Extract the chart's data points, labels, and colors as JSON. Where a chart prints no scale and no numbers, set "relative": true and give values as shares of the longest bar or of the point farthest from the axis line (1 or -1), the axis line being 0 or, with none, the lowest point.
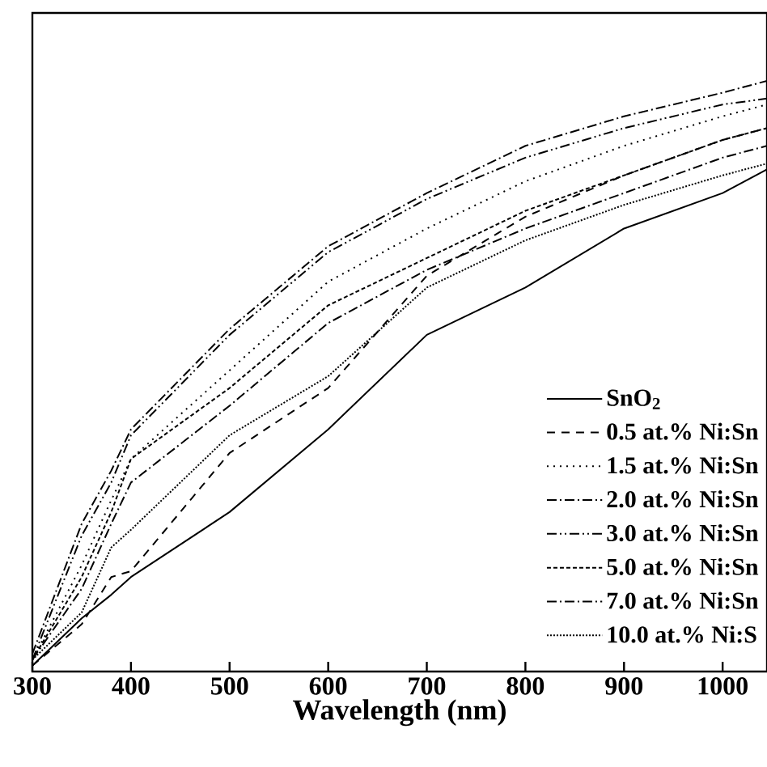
{
  "chart_data": {
    "type": "line",
    "xlabel": "Wavelength (nm)",
    "relative": true,
    "x": [
      300,
      350,
      380,
      400,
      500,
      600,
      700,
      800,
      900,
      1000,
      1045
    ],
    "xlim": [
      300,
      1045
    ],
    "xticks": [
      300,
      400,
      500,
      600,
      700,
      800,
      900,
      1000
    ],
    "legend": "bottom right",
    "grid": false,
    "marker": "none",
    "series": [
      {
        "name": "SnO$_{2}$",
        "color": "#000000",
        "line_style": "solid",
        "values": [
          0.01,
          0.09,
          0.13,
          0.16,
          0.27,
          0.41,
          0.57,
          0.65,
          0.75,
          0.81,
          0.85
        ]
      },
      {
        "name": "0.5 at.% Ni:Sn",
        "color": "#000000",
        "line_style": "dashed",
        "values": [
          0.01,
          0.08,
          0.16,
          0.17,
          0.37,
          0.48,
          0.67,
          0.77,
          0.84,
          0.9,
          0.92
        ]
      },
      {
        "name": "1.5 at.% Ni:Sn",
        "color": "#000000",
        "line_style": "dotted",
        "values": [
          0.02,
          0.18,
          0.29,
          0.36,
          0.51,
          0.66,
          0.75,
          0.83,
          0.89,
          0.94,
          0.96
        ]
      },
      {
        "name": "2.0 at.% Ni:Sn",
        "color": "#000000",
        "line_style": "dashdot",
        "values": [
          0.02,
          0.14,
          0.25,
          0.32,
          0.45,
          0.59,
          0.68,
          0.75,
          0.81,
          0.87,
          0.89
        ]
      },
      {
        "name": "3.0 at.% Ni:Sn",
        "color": "#000000",
        "line_style": "dashdotdot",
        "values": [
          0.02,
          0.23,
          0.32,
          0.4,
          0.57,
          0.71,
          0.8,
          0.87,
          0.92,
          0.96,
          0.97
        ]
      },
      {
        "name": "5.0 at.% Ni:Sn",
        "color": "#000000",
        "line_style": "shortdash",
        "values": [
          0.02,
          0.16,
          0.27,
          0.36,
          0.48,
          0.62,
          0.7,
          0.78,
          0.84,
          0.9,
          0.92
        ]
      },
      {
        "name": "7.0 at.% Ni:Sn",
        "color": "#000000",
        "line_style": "dashdot",
        "values": [
          0.03,
          0.25,
          0.34,
          0.41,
          0.58,
          0.72,
          0.81,
          0.89,
          0.94,
          0.98,
          1.0
        ]
      },
      {
        "name": "10.0 at.% Ni:S",
        "color": "#000000",
        "line_style": "densedot",
        "values": [
          0.02,
          0.1,
          0.21,
          0.24,
          0.4,
          0.5,
          0.65,
          0.73,
          0.79,
          0.84,
          0.86
        ]
      }
    ]
  }
}
